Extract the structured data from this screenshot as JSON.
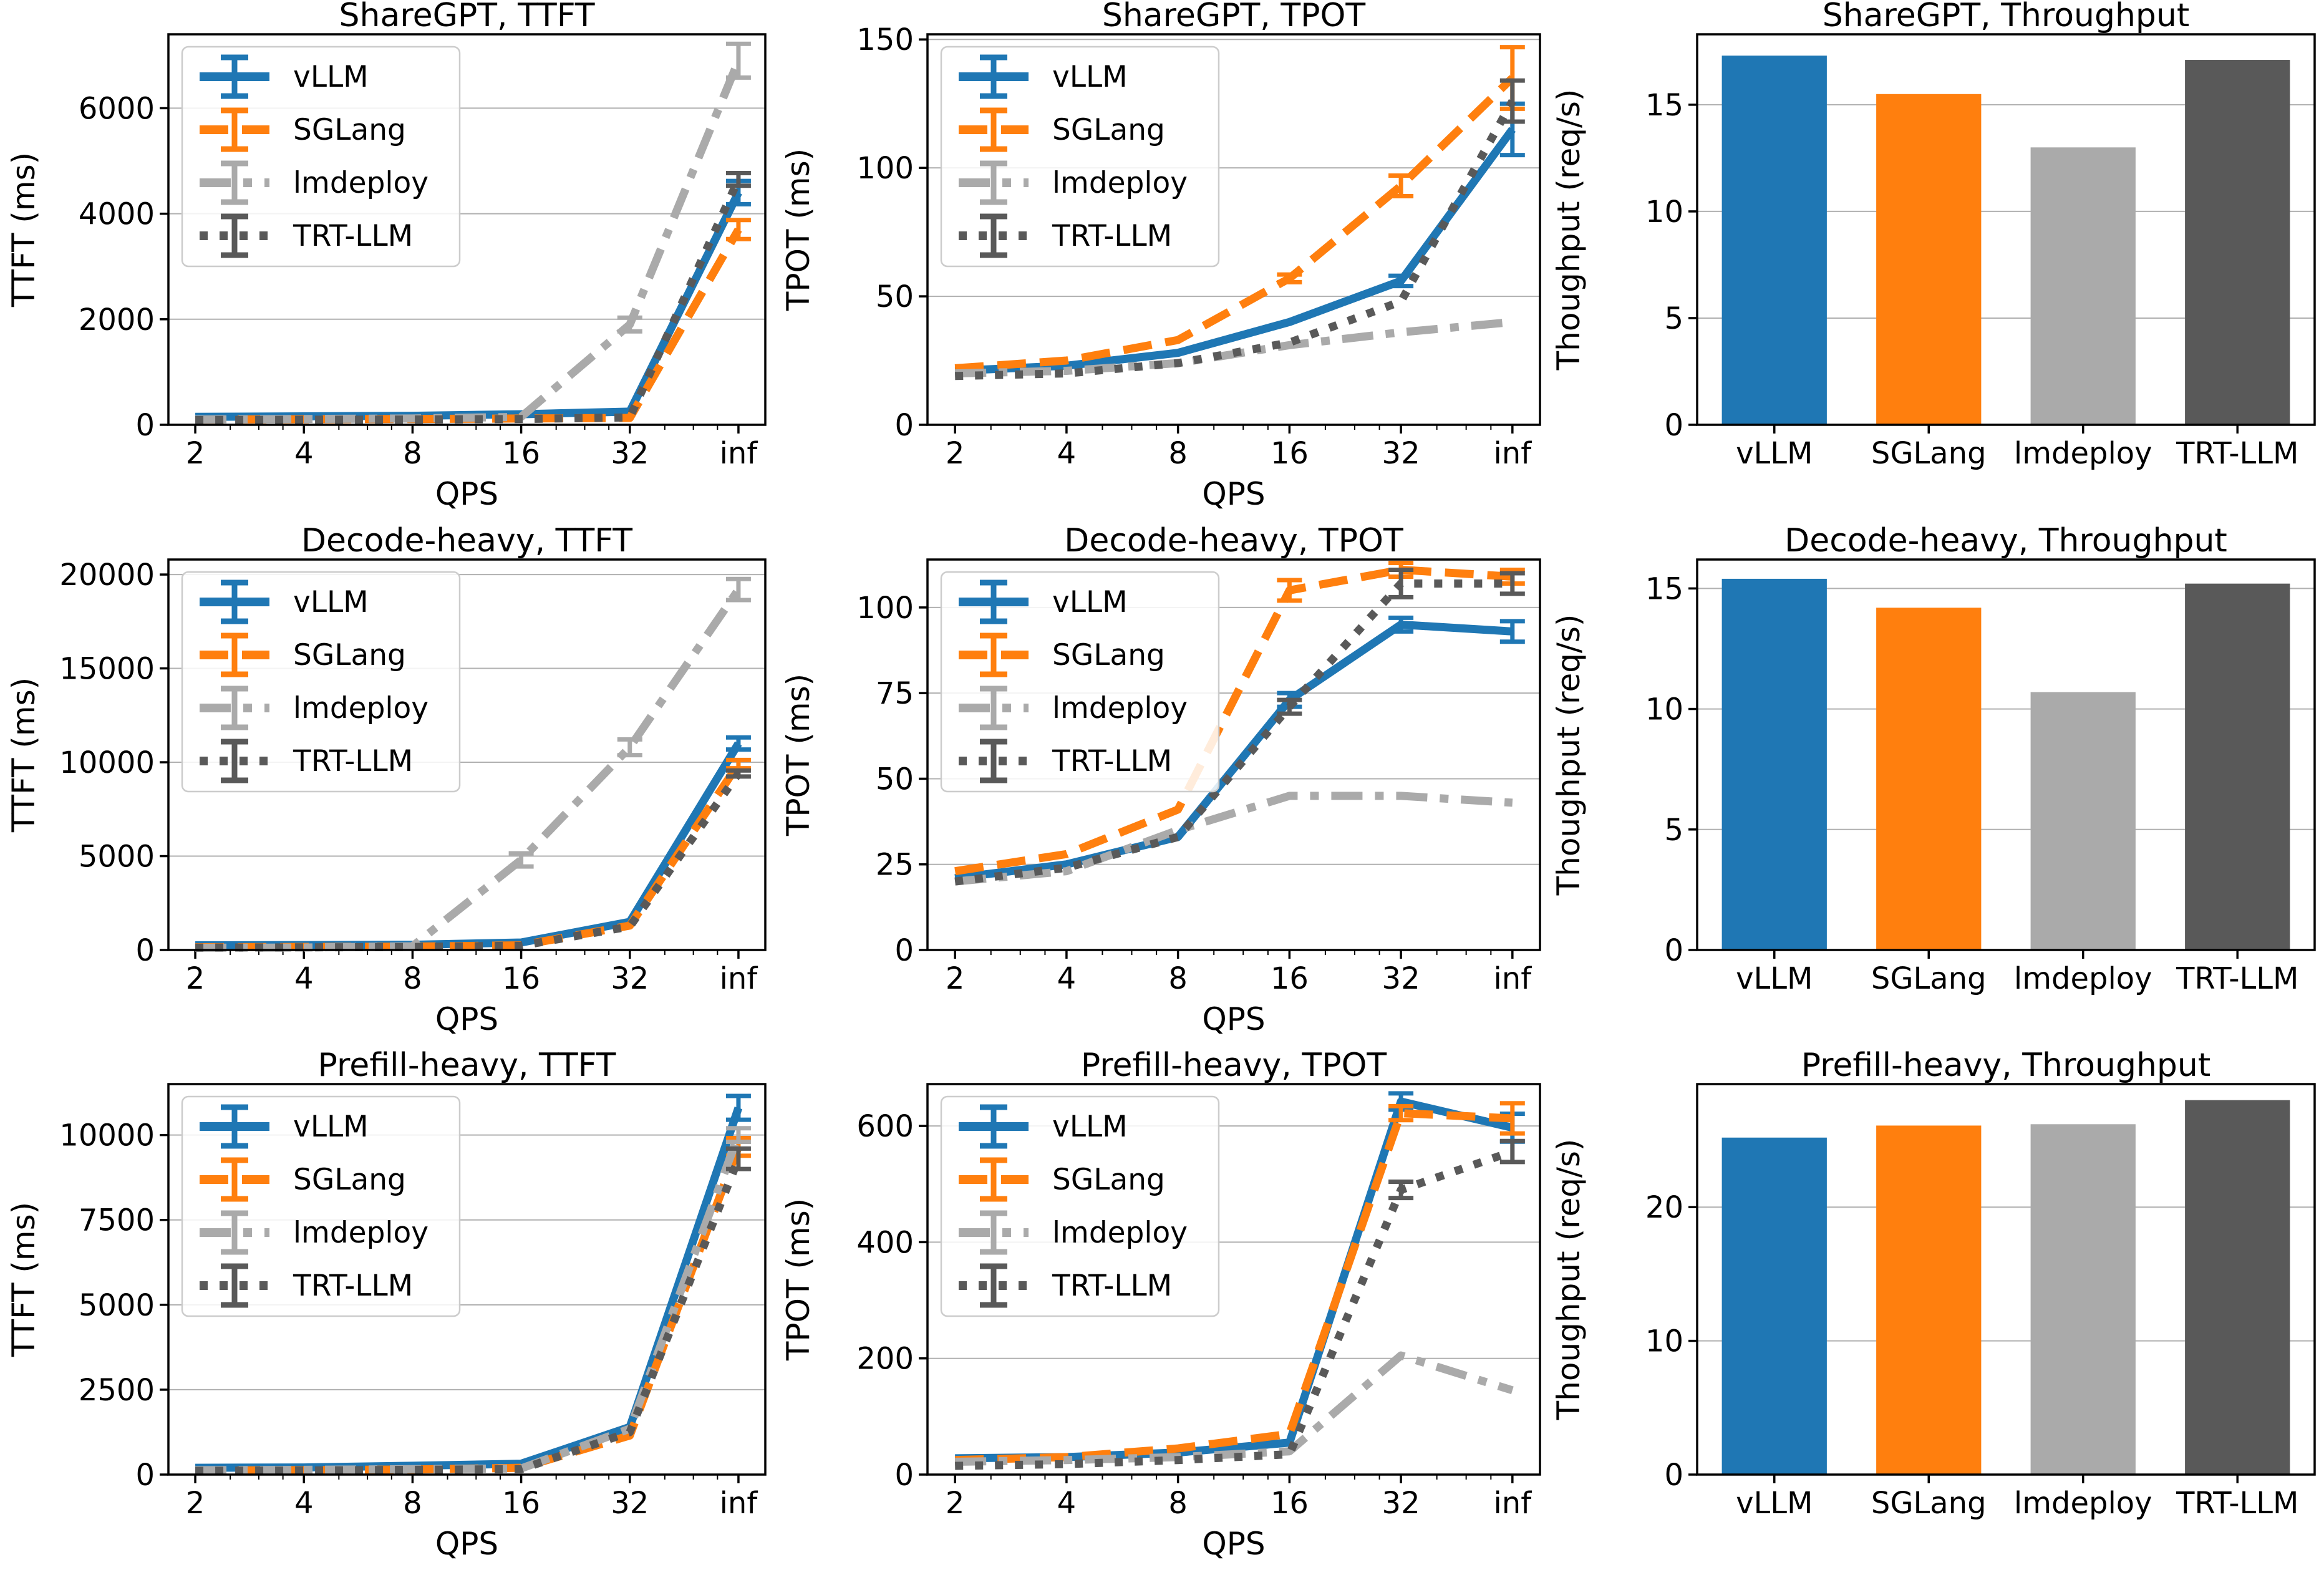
{
  "page": {
    "background": "#ffffff",
    "grid_color": "#b0b0b0",
    "axis_color": "#000000"
  },
  "frameworks": [
    {
      "name": "vLLM",
      "color": "#1f77b4",
      "dash": "solid"
    },
    {
      "name": "SGLang",
      "color": "#ff7f0e",
      "dash": "dashed"
    },
    {
      "name": "lmdeploy",
      "color": "#aaaaaa",
      "dash": "dashdot"
    },
    {
      "name": "TRT-LLM",
      "color": "#595959",
      "dash": "dotted"
    }
  ],
  "legend": {
    "entries": [
      "vLLM",
      "SGLang",
      "lmdeploy",
      "TRT-LLM"
    ],
    "position": "upper-left",
    "border_color": "#cccccc"
  },
  "chart_data": [
    {
      "type": "line",
      "title": "ShareGPT, TTFT",
      "xlabel": "QPS",
      "ylabel": "TTFT (ms)",
      "categories": [
        "2",
        "4",
        "8",
        "16",
        "32",
        "inf"
      ],
      "yticks": [
        0,
        2000,
        4000,
        6000
      ],
      "ylim": [
        0,
        7400
      ],
      "grid": true,
      "legend": true,
      "series": [
        {
          "name": "vLLM",
          "values": [
            150,
            160,
            170,
            200,
            250,
            4400
          ],
          "errors": [
            0,
            0,
            0,
            0,
            0,
            220
          ]
        },
        {
          "name": "SGLang",
          "values": [
            100,
            105,
            110,
            120,
            130,
            3700
          ],
          "errors": [
            0,
            0,
            0,
            0,
            0,
            180
          ]
        },
        {
          "name": "lmdeploy",
          "values": [
            100,
            110,
            120,
            150,
            1900,
            6900
          ],
          "errors": [
            0,
            0,
            0,
            0,
            130,
            320
          ]
        },
        {
          "name": "TRT-LLM",
          "values": [
            90,
            95,
            100,
            110,
            140,
            4650
          ],
          "errors": [
            0,
            0,
            0,
            0,
            0,
            120
          ]
        }
      ]
    },
    {
      "type": "line",
      "title": "ShareGPT, TPOT",
      "xlabel": "QPS",
      "ylabel": "TPOT (ms)",
      "categories": [
        "2",
        "4",
        "8",
        "16",
        "32",
        "inf"
      ],
      "yticks": [
        0,
        50,
        100,
        150
      ],
      "ylim": [
        0,
        152
      ],
      "grid": true,
      "legend": true,
      "series": [
        {
          "name": "vLLM",
          "values": [
            21,
            23,
            28,
            40,
            56,
            115
          ],
          "errors": [
            0,
            0,
            0,
            0,
            2,
            10
          ]
        },
        {
          "name": "SGLang",
          "values": [
            22,
            25,
            33,
            57,
            93,
            135
          ],
          "errors": [
            0,
            0,
            0,
            1.5,
            4,
            12
          ]
        },
        {
          "name": "lmdeploy",
          "values": [
            20,
            21,
            24,
            31,
            36,
            40
          ],
          "errors": [
            0,
            0,
            0,
            0,
            0,
            0
          ]
        },
        {
          "name": "TRT-LLM",
          "values": [
            19,
            20,
            24,
            32,
            48,
            126
          ],
          "errors": [
            0,
            0,
            0,
            0,
            0,
            8
          ]
        }
      ]
    },
    {
      "type": "bar",
      "title": "ShareGPT, Throughput",
      "xlabel": "",
      "ylabel": "Thoughput (req/s)",
      "categories": [
        "vLLM",
        "SGLang",
        "lmdeploy",
        "TRT-LLM"
      ],
      "values": [
        17.3,
        15.5,
        13.0,
        17.1
      ],
      "yticks": [
        0,
        5,
        10,
        15
      ],
      "ylim": [
        0,
        18.3
      ],
      "grid": true,
      "legend": false
    },
    {
      "type": "line",
      "title": "Decode-heavy, TTFT",
      "xlabel": "QPS",
      "ylabel": "TTFT (ms)",
      "categories": [
        "2",
        "4",
        "8",
        "16",
        "32",
        "inf"
      ],
      "yticks": [
        0,
        5000,
        10000,
        15000,
        20000
      ],
      "ylim": [
        0,
        20800
      ],
      "grid": true,
      "legend": true,
      "series": [
        {
          "name": "vLLM",
          "values": [
            250,
            260,
            280,
            400,
            1500,
            11000
          ],
          "errors": [
            0,
            0,
            0,
            0,
            0,
            320
          ]
        },
        {
          "name": "SGLang",
          "values": [
            150,
            160,
            180,
            250,
            1300,
            9900
          ],
          "errors": [
            0,
            0,
            0,
            0,
            0,
            220
          ]
        },
        {
          "name": "lmdeploy",
          "values": [
            120,
            130,
            200,
            4800,
            10800,
            19200
          ],
          "errors": [
            0,
            0,
            0,
            350,
            420,
            560
          ]
        },
        {
          "name": "TRT-LLM",
          "values": [
            130,
            140,
            160,
            230,
            1250,
            9400
          ],
          "errors": [
            0,
            0,
            0,
            0,
            0,
            160
          ]
        }
      ]
    },
    {
      "type": "line",
      "title": "Decode-heavy, TPOT",
      "xlabel": "QPS",
      "ylabel": "TPOT (ms)",
      "categories": [
        "2",
        "4",
        "8",
        "16",
        "32",
        "inf"
      ],
      "yticks": [
        0,
        25,
        50,
        75,
        100
      ],
      "ylim": [
        0,
        114
      ],
      "grid": true,
      "legend": true,
      "series": [
        {
          "name": "vLLM",
          "values": [
            21,
            25,
            33,
            73,
            95,
            93
          ],
          "errors": [
            0,
            0,
            0,
            2,
            2,
            3
          ]
        },
        {
          "name": "SGLang",
          "values": [
            23,
            28,
            41,
            105,
            111,
            109
          ],
          "errors": [
            0,
            0,
            0,
            3,
            2,
            2
          ]
        },
        {
          "name": "lmdeploy",
          "values": [
            20,
            23,
            35,
            45,
            45,
            43
          ],
          "errors": [
            0,
            0,
            0,
            0,
            0,
            0
          ]
        },
        {
          "name": "TRT-LLM",
          "values": [
            20,
            24,
            33,
            71,
            107,
            107
          ],
          "errors": [
            0,
            0,
            0,
            2,
            4,
            3
          ]
        }
      ]
    },
    {
      "type": "bar",
      "title": "Decode-heavy, Throughput",
      "xlabel": "",
      "ylabel": "Thoughput (req/s)",
      "categories": [
        "vLLM",
        "SGLang",
        "lmdeploy",
        "TRT-LLM"
      ],
      "values": [
        15.4,
        14.2,
        10.7,
        15.2
      ],
      "yticks": [
        0,
        5,
        10,
        15
      ],
      "ylim": [
        0,
        16.2
      ],
      "grid": true,
      "legend": false
    },
    {
      "type": "line",
      "title": "Prefill-heavy, TTFT",
      "xlabel": "QPS",
      "ylabel": "TTFT (ms)",
      "categories": [
        "2",
        "4",
        "8",
        "16",
        "32",
        "inf"
      ],
      "yticks": [
        0,
        2500,
        5000,
        7500,
        10000
      ],
      "ylim": [
        0,
        11500
      ],
      "grid": true,
      "legend": true,
      "series": [
        {
          "name": "vLLM",
          "values": [
            200,
            210,
            260,
            320,
            1400,
            10800
          ],
          "errors": [
            0,
            0,
            0,
            0,
            0,
            350
          ]
        },
        {
          "name": "SGLang",
          "values": [
            120,
            130,
            150,
            200,
            1150,
            9650
          ],
          "errors": [
            0,
            0,
            0,
            0,
            0,
            260
          ]
        },
        {
          "name": "lmdeploy",
          "values": [
            130,
            140,
            160,
            180,
            1350,
            10000
          ],
          "errors": [
            0,
            0,
            0,
            0,
            0,
            200
          ]
        },
        {
          "name": "TRT-LLM",
          "values": [
            110,
            120,
            140,
            160,
            1250,
            9300
          ],
          "errors": [
            0,
            0,
            0,
            0,
            0,
            300
          ]
        }
      ]
    },
    {
      "type": "line",
      "title": "Prefill-heavy, TPOT",
      "xlabel": "QPS",
      "ylabel": "TPOT (ms)",
      "categories": [
        "2",
        "4",
        "8",
        "16",
        "32",
        "inf"
      ],
      "yticks": [
        0,
        200,
        400,
        600
      ],
      "ylim": [
        0,
        672
      ],
      "grid": true,
      "legend": true,
      "series": [
        {
          "name": "vLLM",
          "values": [
            28,
            30,
            38,
            55,
            642,
            597
          ],
          "errors": [
            0,
            0,
            0,
            0,
            14,
            24
          ]
        },
        {
          "name": "SGLang",
          "values": [
            25,
            30,
            45,
            70,
            622,
            613
          ],
          "errors": [
            0,
            0,
            0,
            0,
            12,
            26
          ]
        },
        {
          "name": "lmdeploy",
          "values": [
            22,
            25,
            30,
            40,
            205,
            145
          ],
          "errors": [
            0,
            0,
            0,
            0,
            0,
            0
          ]
        },
        {
          "name": "TRT-LLM",
          "values": [
            15,
            18,
            25,
            35,
            490,
            556
          ],
          "errors": [
            0,
            0,
            0,
            0,
            14,
            18
          ]
        }
      ]
    },
    {
      "type": "bar",
      "title": "Prefill-heavy, Throughput",
      "xlabel": "",
      "ylabel": "Thoughput (req/s)",
      "categories": [
        "vLLM",
        "SGLang",
        "lmdeploy",
        "TRT-LLM"
      ],
      "values": [
        25.2,
        26.1,
        26.2,
        28.0
      ],
      "yticks": [
        0,
        10,
        20
      ],
      "ylim": [
        0,
        29.2
      ],
      "grid": true,
      "legend": false
    }
  ]
}
